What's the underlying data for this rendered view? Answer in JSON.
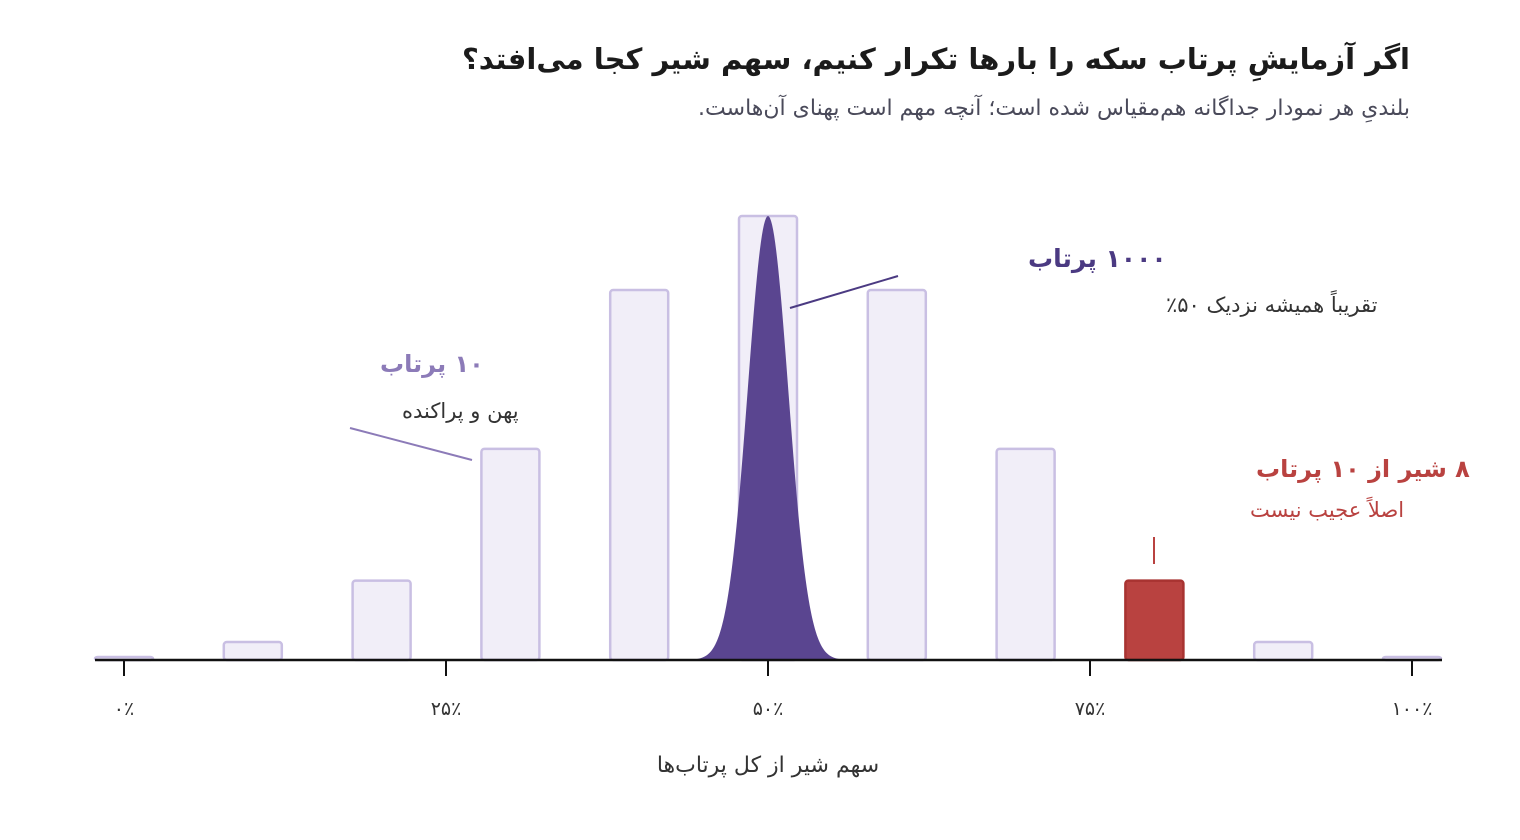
{
  "title": "اگر آزمایشِ پرتاب سکه را بارها تکرار کنیم، سهم شیر کجا می‌افتد؟",
  "subtitle": "بلندیِ هر نمودار جداگانه هم‌مقیاس شده است؛ آنچه مهم است پهنای آن‌هاست.",
  "colors": {
    "bar_fill": "#f1eef8",
    "bar_stroke": "#c9bfe3",
    "curve_fill": "#5a4590",
    "highlight": "#b94240",
    "axis": "#111111",
    "label_10": "#8c7bb8",
    "label_1000": "#4b3a82"
  },
  "chart_data": {
    "type": "bar",
    "xlabel": "سهم شیر از کل پرتاب‌ها",
    "ylabel": "",
    "xlim": [
      0,
      100
    ],
    "x_ticks": [
      0,
      25,
      50,
      75,
      100
    ],
    "x_tick_labels": [
      "۰٪",
      "۲۵٪",
      "۵۰٪",
      "۷۵٪",
      "۱۰۰٪"
    ],
    "grid": false,
    "series": [
      {
        "name": "۱۰ پرتاب",
        "type": "bar",
        "x": [
          0,
          10,
          20,
          30,
          40,
          50,
          60,
          70,
          80,
          90,
          100
        ],
        "values": [
          0.001,
          0.01,
          0.044,
          0.117,
          0.205,
          0.246,
          0.205,
          0.117,
          0.044,
          0.01,
          0.001
        ],
        "highlight_x": 80
      },
      {
        "name": "۱۰۰۰ پرتاب",
        "type": "area",
        "mean": 50,
        "sd": 1.58,
        "peak_relative_height": 1.0
      }
    ],
    "annotations": [
      {
        "id": "a10",
        "title": "۱۰ پرتاب",
        "text": "پهن و پراکنده",
        "target_x": 27
      },
      {
        "id": "a1000",
        "title": "۱۰۰۰ پرتاب",
        "text": "تقریباً همیشه نزدیک ۵۰٪",
        "target_x": 52
      },
      {
        "id": "a8",
        "title": "۸ شیر از ۱۰ پرتاب",
        "text": "اصلاً عجیب نیست",
        "target_x": 80
      }
    ]
  }
}
